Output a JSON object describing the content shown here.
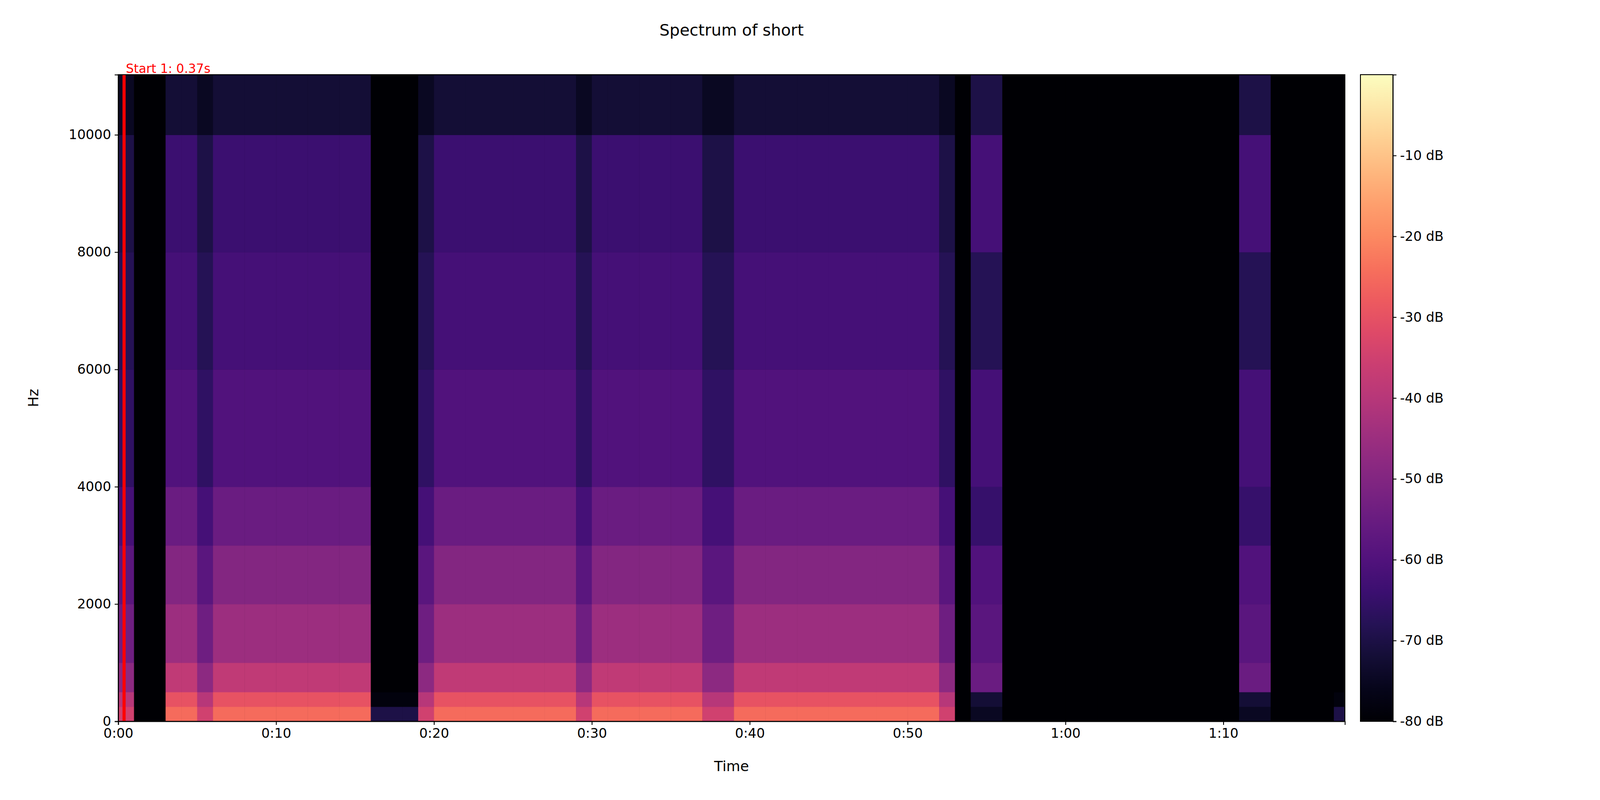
{
  "chart_data": {
    "type": "heatmap",
    "title": "Spectrum of short",
    "x_label": "Time",
    "y_label": "Hz",
    "xlim": [
      0,
      77.7
    ],
    "ylim": [
      0,
      11025
    ],
    "xticks": [
      {
        "value": 0,
        "label": "0:00"
      },
      {
        "value": 10,
        "label": "0:10"
      },
      {
        "value": 20,
        "label": "0:20"
      },
      {
        "value": 30,
        "label": "0:30"
      },
      {
        "value": 40,
        "label": "0:40"
      },
      {
        "value": 50,
        "label": "0:50"
      },
      {
        "value": 60,
        "label": "1:00"
      },
      {
        "value": 70,
        "label": "1:10"
      }
    ],
    "yticks": [
      0,
      2000,
      4000,
      6000,
      8000,
      10000
    ],
    "x_bins": [
      0,
      1,
      2,
      3,
      4,
      5,
      6,
      7,
      8,
      9,
      10,
      11,
      12,
      13,
      14,
      15,
      16,
      17,
      18,
      19,
      20,
      21,
      22,
      23,
      24,
      25,
      26,
      27,
      28,
      29,
      30,
      31,
      32,
      33,
      34,
      35,
      36,
      37,
      38,
      39,
      40,
      41,
      42,
      43,
      44,
      45,
      46,
      47,
      48,
      49,
      50,
      51,
      52,
      53,
      54,
      55,
      56,
      57,
      58,
      59,
      60,
      61,
      62,
      63,
      64,
      65,
      66,
      67,
      68,
      69,
      70,
      71,
      72,
      73,
      74,
      75,
      76,
      77,
      77.7
    ],
    "y_bins": [
      0,
      250,
      500,
      1000,
      2000,
      3000,
      4000,
      6000,
      8000,
      10000,
      11025
    ],
    "cells": [
      [
        -35,
        -80,
        -80,
        -25,
        -25,
        -35,
        -25,
        -25,
        -25,
        -25,
        -25,
        -25,
        -25,
        -25,
        -25,
        -25,
        -70,
        -70,
        -70,
        -35,
        -25,
        -25,
        -25,
        -25,
        -25,
        -25,
        -25,
        -25,
        -25,
        -35,
        -25,
        -25,
        -25,
        -25,
        -25,
        -25,
        -25,
        -35,
        -35,
        -25,
        -25,
        -25,
        -25,
        -25,
        -25,
        -25,
        -25,
        -25,
        -25,
        -25,
        -25,
        -25,
        -35,
        -80,
        -75,
        -75,
        -80,
        -80,
        -80,
        -80,
        -80,
        -80,
        -80,
        -80,
        -80,
        -80,
        -80,
        -80,
        -80,
        -80,
        -80,
        -75,
        -75,
        -80,
        -80,
        -80,
        -80,
        -70
      ],
      [
        -40,
        -80,
        -80,
        -30,
        -30,
        -40,
        -30,
        -30,
        -30,
        -30,
        -30,
        -30,
        -30,
        -30,
        -30,
        -30,
        -78,
        -78,
        -78,
        -40,
        -30,
        -30,
        -30,
        -30,
        -30,
        -30,
        -30,
        -30,
        -30,
        -40,
        -30,
        -30,
        -30,
        -30,
        -30,
        -30,
        -30,
        -40,
        -40,
        -30,
        -30,
        -30,
        -30,
        -30,
        -30,
        -30,
        -30,
        -30,
        -30,
        -30,
        -30,
        -30,
        -40,
        -80,
        -72,
        -72,
        -80,
        -80,
        -80,
        -80,
        -80,
        -80,
        -80,
        -80,
        -80,
        -80,
        -80,
        -80,
        -80,
        -80,
        -80,
        -72,
        -72,
        -80,
        -80,
        -80,
        -80,
        -78
      ],
      [
        -48,
        -80,
        -80,
        -38,
        -38,
        -48,
        -38,
        -38,
        -38,
        -38,
        -38,
        -38,
        -38,
        -38,
        -38,
        -38,
        -80,
        -80,
        -80,
        -48,
        -38,
        -38,
        -38,
        -38,
        -38,
        -38,
        -38,
        -38,
        -38,
        -48,
        -38,
        -38,
        -38,
        -38,
        -38,
        -38,
        -38,
        -48,
        -48,
        -38,
        -38,
        -38,
        -38,
        -38,
        -38,
        -38,
        -38,
        -38,
        -38,
        -38,
        -38,
        -38,
        -48,
        -80,
        -55,
        -55,
        -80,
        -80,
        -80,
        -80,
        -80,
        -80,
        -80,
        -80,
        -80,
        -80,
        -80,
        -80,
        -80,
        -80,
        -80,
        -55,
        -55,
        -80,
        -80,
        -80,
        -80,
        -80
      ],
      [
        -54,
        -80,
        -80,
        -45,
        -45,
        -54,
        -45,
        -45,
        -45,
        -45,
        -45,
        -45,
        -45,
        -45,
        -45,
        -45,
        -80,
        -80,
        -80,
        -54,
        -45,
        -45,
        -45,
        -45,
        -45,
        -45,
        -45,
        -45,
        -45,
        -54,
        -45,
        -45,
        -45,
        -45,
        -45,
        -45,
        -45,
        -54,
        -54,
        -45,
        -45,
        -45,
        -45,
        -45,
        -45,
        -45,
        -45,
        -45,
        -45,
        -45,
        -45,
        -45,
        -54,
        -80,
        -58,
        -58,
        -80,
        -80,
        -80,
        -80,
        -80,
        -80,
        -80,
        -80,
        -80,
        -80,
        -80,
        -80,
        -80,
        -80,
        -80,
        -58,
        -58,
        -80,
        -80,
        -80,
        -80,
        -80
      ],
      [
        -58,
        -80,
        -80,
        -50,
        -50,
        -58,
        -50,
        -50,
        -50,
        -50,
        -50,
        -50,
        -50,
        -50,
        -50,
        -50,
        -80,
        -80,
        -80,
        -58,
        -50,
        -50,
        -50,
        -50,
        -50,
        -50,
        -50,
        -50,
        -50,
        -58,
        -50,
        -50,
        -50,
        -50,
        -50,
        -50,
        -50,
        -58,
        -58,
        -50,
        -50,
        -50,
        -50,
        -50,
        -50,
        -50,
        -50,
        -50,
        -50,
        -50,
        -50,
        -50,
        -58,
        -80,
        -60,
        -60,
        -80,
        -80,
        -80,
        -80,
        -80,
        -80,
        -80,
        -80,
        -80,
        -80,
        -80,
        -80,
        -80,
        -80,
        -80,
        -60,
        -60,
        -80,
        -80,
        -80,
        -80,
        -80
      ],
      [
        -62,
        -80,
        -80,
        -55,
        -55,
        -62,
        -55,
        -55,
        -55,
        -55,
        -55,
        -55,
        -55,
        -55,
        -55,
        -55,
        -80,
        -80,
        -80,
        -62,
        -55,
        -55,
        -55,
        -55,
        -55,
        -55,
        -55,
        -55,
        -55,
        -62,
        -55,
        -55,
        -55,
        -55,
        -55,
        -55,
        -55,
        -62,
        -62,
        -55,
        -55,
        -55,
        -55,
        -55,
        -55,
        -55,
        -55,
        -55,
        -55,
        -55,
        -55,
        -55,
        -62,
        -80,
        -65,
        -65,
        -80,
        -80,
        -80,
        -80,
        -80,
        -80,
        -80,
        -80,
        -80,
        -80,
        -80,
        -80,
        -80,
        -80,
        -80,
        -65,
        -65,
        -80,
        -80,
        -80,
        -80,
        -80
      ],
      [
        -66,
        -80,
        -80,
        -60,
        -60,
        -66,
        -60,
        -60,
        -60,
        -60,
        -60,
        -60,
        -60,
        -60,
        -60,
        -60,
        -80,
        -80,
        -80,
        -66,
        -60,
        -60,
        -60,
        -60,
        -60,
        -60,
        -60,
        -60,
        -60,
        -66,
        -60,
        -60,
        -60,
        -60,
        -60,
        -60,
        -60,
        -66,
        -66,
        -60,
        -60,
        -60,
        -60,
        -60,
        -60,
        -60,
        -60,
        -60,
        -60,
        -60,
        -60,
        -60,
        -66,
        -80,
        -62,
        -62,
        -80,
        -80,
        -80,
        -80,
        -80,
        -80,
        -80,
        -80,
        -80,
        -80,
        -80,
        -80,
        -80,
        -80,
        -80,
        -62,
        -62,
        -80,
        -80,
        -80,
        -80,
        -80
      ],
      [
        -68,
        -80,
        -80,
        -62,
        -62,
        -68,
        -62,
        -62,
        -62,
        -62,
        -62,
        -62,
        -62,
        -62,
        -62,
        -62,
        -80,
        -80,
        -80,
        -68,
        -62,
        -62,
        -62,
        -62,
        -62,
        -62,
        -62,
        -62,
        -62,
        -68,
        -62,
        -62,
        -62,
        -62,
        -62,
        -62,
        -62,
        -68,
        -68,
        -62,
        -62,
        -62,
        -62,
        -62,
        -62,
        -62,
        -62,
        -62,
        -62,
        -62,
        -62,
        -62,
        -68,
        -80,
        -68,
        -68,
        -80,
        -80,
        -80,
        -80,
        -80,
        -80,
        -80,
        -80,
        -80,
        -80,
        -80,
        -80,
        -80,
        -80,
        -80,
        -68,
        -68,
        -80,
        -80,
        -80,
        -80,
        -80
      ],
      [
        -70,
        -80,
        -80,
        -64,
        -64,
        -70,
        -64,
        -64,
        -64,
        -64,
        -64,
        -64,
        -64,
        -64,
        -64,
        -64,
        -80,
        -80,
        -80,
        -70,
        -64,
        -64,
        -64,
        -64,
        -64,
        -64,
        -64,
        -64,
        -64,
        -70,
        -64,
        -64,
        -64,
        -64,
        -64,
        -64,
        -64,
        -70,
        -70,
        -64,
        -64,
        -64,
        -64,
        -64,
        -64,
        -64,
        -64,
        -64,
        -64,
        -64,
        -64,
        -64,
        -70,
        -80,
        -62,
        -62,
        -80,
        -80,
        -80,
        -80,
        -80,
        -80,
        -80,
        -80,
        -80,
        -80,
        -80,
        -80,
        -80,
        -80,
        -80,
        -62,
        -62,
        -80,
        -80,
        -80,
        -80,
        -80
      ],
      [
        -75,
        -80,
        -80,
        -72,
        -72,
        -75,
        -72,
        -72,
        -72,
        -72,
        -72,
        -72,
        -72,
        -72,
        -72,
        -72,
        -80,
        -80,
        -80,
        -75,
        -72,
        -72,
        -72,
        -72,
        -72,
        -72,
        -72,
        -72,
        -72,
        -75,
        -72,
        -72,
        -72,
        -72,
        -72,
        -72,
        -72,
        -75,
        -75,
        -72,
        -72,
        -72,
        -72,
        -72,
        -72,
        -72,
        -72,
        -72,
        -72,
        -72,
        -72,
        -72,
        -75,
        -80,
        -70,
        -70,
        -80,
        -80,
        -80,
        -80,
        -80,
        -80,
        -80,
        -80,
        -80,
        -80,
        -80,
        -80,
        -80,
        -80,
        -80,
        -70,
        -70,
        -80,
        -80,
        -80,
        -80,
        -80
      ]
    ],
    "colorbar": {
      "range": [
        -80,
        0
      ],
      "ticks": [
        {
          "value": -10,
          "label": "-10 dB"
        },
        {
          "value": -20,
          "label": "-20 dB"
        },
        {
          "value": -30,
          "label": "-30 dB"
        },
        {
          "value": -40,
          "label": "-40 dB"
        },
        {
          "value": -50,
          "label": "-50 dB"
        },
        {
          "value": -60,
          "label": "-60 dB"
        },
        {
          "value": -70,
          "label": "-70 dB"
        },
        {
          "value": -80,
          "label": "-80 dB"
        }
      ]
    },
    "annotations": [
      {
        "x": 0.37,
        "text": "Start 1: 0.37s",
        "color": "red"
      }
    ]
  }
}
